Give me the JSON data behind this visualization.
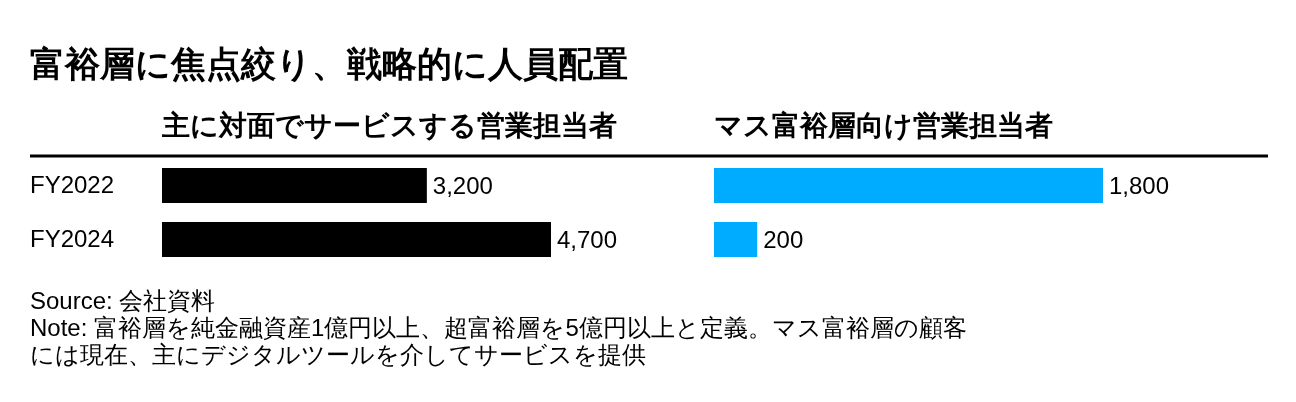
{
  "chart_data": [
    {
      "type": "bar",
      "orientation": "horizontal",
      "title": "富裕層に焦点絞り、戦略的に人員配置",
      "subtitle": "主に対面でサービスする営業担当者",
      "categories": [
        "FY2022",
        "FY2024"
      ],
      "values": [
        3200,
        4700
      ],
      "value_labels": [
        "3,200",
        "4,700"
      ],
      "color": "#000000",
      "tick_labels": "y",
      "annotations": [
        "Source: 会社資料",
        "Note: 富裕層を純金融資産1億円以上、超富裕層を5億円以上と定義。マス富裕層の顧客には現在、主にデジタルツールを介してサービスを提供"
      ]
    },
    {
      "type": "bar",
      "orientation": "horizontal",
      "subtitle": "マス富裕層向け営業担当者",
      "categories": [
        "FY2022",
        "FY2024"
      ],
      "values": [
        1800,
        200
      ],
      "value_labels": [
        "1,800",
        "200"
      ],
      "color": "#00acff",
      "tick_labels": false
    }
  ]
}
